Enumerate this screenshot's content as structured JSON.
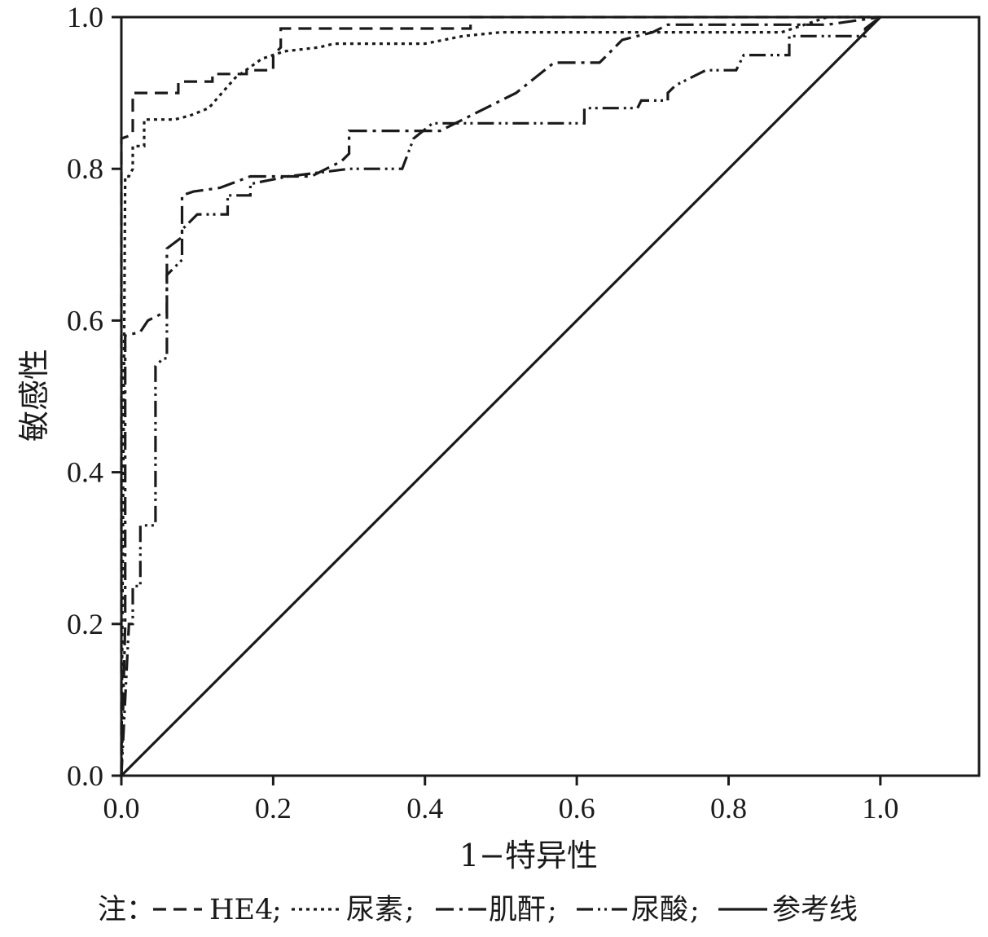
{
  "chart_data": {
    "type": "line",
    "title": "",
    "xlabel": "1−特异性",
    "ylabel": "敏感性",
    "xlim": [
      0,
      1.13
    ],
    "ylim": [
      0,
      1.0
    ],
    "x_ticks": [
      "0.0",
      "0.2",
      "0.4",
      "0.6",
      "0.8",
      "1.0"
    ],
    "y_ticks": [
      "0.0",
      "0.2",
      "0.4",
      "0.6",
      "0.8",
      "1.0"
    ],
    "x_tick_values": [
      0,
      0.2,
      0.4,
      0.6,
      0.8,
      1.0
    ],
    "y_tick_values": [
      0,
      0.2,
      0.4,
      0.6,
      0.8,
      1.0
    ],
    "grid": false,
    "legend_position": "bottom",
    "legend_prefix": "注：",
    "series": [
      {
        "name": "HE4",
        "dash": "16,9",
        "points": [
          [
            0,
            0
          ],
          [
            0,
            0.84
          ],
          [
            0.015,
            0.845
          ],
          [
            0.015,
            0.9
          ],
          [
            0.075,
            0.9
          ],
          [
            0.075,
            0.915
          ],
          [
            0.12,
            0.915
          ],
          [
            0.12,
            0.925
          ],
          [
            0.165,
            0.925
          ],
          [
            0.165,
            0.93
          ],
          [
            0.2,
            0.93
          ],
          [
            0.2,
            0.95
          ],
          [
            0.21,
            0.96
          ],
          [
            0.21,
            0.975
          ],
          [
            0.21,
            0.985
          ],
          [
            0.46,
            0.985
          ],
          [
            0.46,
            1.0
          ],
          [
            1.0,
            1.0
          ]
        ]
      },
      {
        "name": "尿素",
        "dash": "4,5",
        "points": [
          [
            0,
            0
          ],
          [
            0.005,
            0.79
          ],
          [
            0.01,
            0.79
          ],
          [
            0.015,
            0.8
          ],
          [
            0.015,
            0.83
          ],
          [
            0.03,
            0.83
          ],
          [
            0.03,
            0.865
          ],
          [
            0.07,
            0.865
          ],
          [
            0.09,
            0.87
          ],
          [
            0.115,
            0.88
          ],
          [
            0.15,
            0.92
          ],
          [
            0.185,
            0.945
          ],
          [
            0.215,
            0.955
          ],
          [
            0.26,
            0.96
          ],
          [
            0.28,
            0.965
          ],
          [
            0.34,
            0.965
          ],
          [
            0.4,
            0.965
          ],
          [
            0.45,
            0.975
          ],
          [
            0.5,
            0.98
          ],
          [
            0.87,
            0.98
          ],
          [
            0.9,
            0.99
          ],
          [
            0.93,
            1.0
          ],
          [
            1.0,
            1.0
          ]
        ]
      },
      {
        "name": "肌酐",
        "dash": "22,7,4,7",
        "points": [
          [
            0,
            0
          ],
          [
            0.005,
            0.2
          ],
          [
            0.005,
            0.58
          ],
          [
            0.025,
            0.585
          ],
          [
            0.035,
            0.6
          ],
          [
            0.055,
            0.61
          ],
          [
            0.06,
            0.61
          ],
          [
            0.06,
            0.695
          ],
          [
            0.08,
            0.71
          ],
          [
            0.08,
            0.765
          ],
          [
            0.095,
            0.77
          ],
          [
            0.13,
            0.775
          ],
          [
            0.17,
            0.79
          ],
          [
            0.25,
            0.79
          ],
          [
            0.27,
            0.8
          ],
          [
            0.29,
            0.81
          ],
          [
            0.3,
            0.82
          ],
          [
            0.3,
            0.85
          ],
          [
            0.42,
            0.85
          ],
          [
            0.46,
            0.87
          ],
          [
            0.5,
            0.89
          ],
          [
            0.52,
            0.9
          ],
          [
            0.57,
            0.94
          ],
          [
            0.63,
            0.94
          ],
          [
            0.66,
            0.97
          ],
          [
            0.7,
            0.98
          ],
          [
            0.72,
            0.99
          ],
          [
            0.9,
            0.99
          ],
          [
            0.93,
            0.99
          ],
          [
            1.0,
            1.0
          ]
        ]
      },
      {
        "name": "尿酸",
        "dash": "20,6,3,5,3,6",
        "points": [
          [
            0,
            0
          ],
          [
            0.01,
            0.2
          ],
          [
            0.015,
            0.2
          ],
          [
            0.015,
            0.25
          ],
          [
            0.025,
            0.25
          ],
          [
            0.025,
            0.33
          ],
          [
            0.045,
            0.33
          ],
          [
            0.045,
            0.54
          ],
          [
            0.055,
            0.55
          ],
          [
            0.06,
            0.55
          ],
          [
            0.06,
            0.66
          ],
          [
            0.08,
            0.68
          ],
          [
            0.08,
            0.72
          ],
          [
            0.1,
            0.74
          ],
          [
            0.14,
            0.74
          ],
          [
            0.14,
            0.765
          ],
          [
            0.17,
            0.765
          ],
          [
            0.17,
            0.78
          ],
          [
            0.22,
            0.79
          ],
          [
            0.3,
            0.8
          ],
          [
            0.37,
            0.8
          ],
          [
            0.385,
            0.84
          ],
          [
            0.41,
            0.86
          ],
          [
            0.61,
            0.86
          ],
          [
            0.61,
            0.88
          ],
          [
            0.68,
            0.88
          ],
          [
            0.685,
            0.89
          ],
          [
            0.72,
            0.89
          ],
          [
            0.72,
            0.9
          ],
          [
            0.73,
            0.91
          ],
          [
            0.75,
            0.92
          ],
          [
            0.77,
            0.93
          ],
          [
            0.81,
            0.93
          ],
          [
            0.82,
            0.95
          ],
          [
            0.88,
            0.95
          ],
          [
            0.88,
            0.975
          ],
          [
            0.98,
            0.975
          ],
          [
            0.98,
            0.985
          ],
          [
            1.0,
            1.0
          ]
        ]
      },
      {
        "name": "参考线",
        "dash": "",
        "points": [
          [
            0,
            0
          ],
          [
            1.0,
            1.0
          ]
        ]
      }
    ]
  }
}
